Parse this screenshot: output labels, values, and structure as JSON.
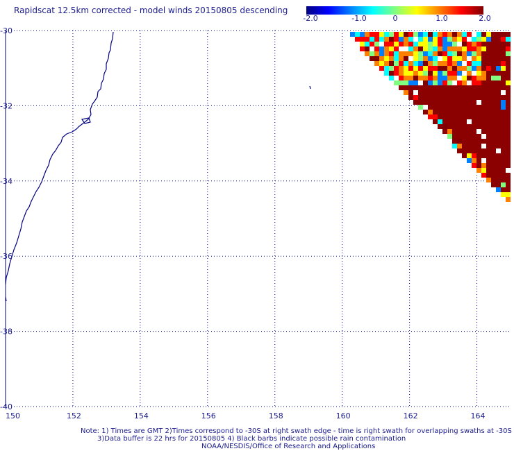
{
  "title": "Rapidscat 12.5km corrected - model winds 20150805 descending",
  "colorbar": {
    "labels": [
      "-2.0",
      "-1.0",
      "0",
      "1.0",
      "2.0"
    ],
    "range": [
      -2.0,
      2.0
    ],
    "colors": [
      "#000080",
      "#0000ff",
      "#0080ff",
      "#00ffff",
      "#80ff80",
      "#ffff00",
      "#ff8000",
      "#ff0000",
      "#800000"
    ]
  },
  "map": {
    "lon_range": [
      150,
      165
    ],
    "lat_range": [
      -40,
      -30
    ],
    "lon_ticks": [
      "150",
      "152",
      "154",
      "156",
      "158",
      "160",
      "162",
      "164"
    ],
    "lat_ticks": [
      "-30",
      "-32",
      "-34",
      "-36",
      "-38",
      "-40"
    ],
    "grid": "dotted",
    "coastline_color": "#000080",
    "swath_predominant_color": "#8b0000"
  },
  "notes": {
    "line1": "Note: 1) Times are GMT 2)Times correspond to -30S at right swath edge - time is right swath for overlapping swaths at -30S",
    "line2": "3)Data buffer is 22 hrs for 20150805 4) Black barbs indicate possible rain contamination",
    "line3": "NOAA/NESDIS/Office of Research and Applications"
  }
}
